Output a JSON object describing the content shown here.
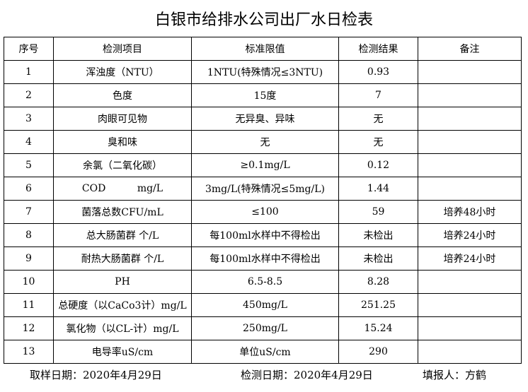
{
  "title": "白银市给排水公司出厂水日检表",
  "table": {
    "header": [
      "序号",
      "检测项目",
      "标准限值",
      "检测结果",
      "备注"
    ],
    "rows": [
      [
        "1",
        "浑浊度（NTU）",
        "1NTU(特殊情况≤3NTU)",
        "0.93",
        ""
      ],
      [
        "2",
        "色度",
        "15度",
        "7",
        ""
      ],
      [
        "3",
        "肉眼可见物",
        "无异臭、异味",
        "无",
        ""
      ],
      [
        "4",
        "臭和味",
        "无",
        "无",
        ""
      ],
      [
        "5",
        "余氯（二氧化碳）",
        "≥0.1mg/L",
        "0.12",
        ""
      ],
      [
        "6",
        "COD          mg/L",
        "3mg/L(特殊情况≤5mg/L)",
        "1.44",
        ""
      ],
      [
        "7",
        "菌落总数CFU/mL",
        "≤100",
        "59",
        "培养48小时"
      ],
      [
        "8",
        "总大肠菌群 个/L",
        "每100ml水样中不得检出",
        "未检出",
        "培养24小时"
      ],
      [
        "9",
        "耐热大肠菌群 个/L",
        "每100ml水样中不得检出",
        "未检出",
        "培养24小时"
      ],
      [
        "10",
        "PH",
        "6.5-8.5",
        "8.28",
        ""
      ],
      [
        "11",
        "总硬度（以CaCo3计）mg/L",
        "450mg/L",
        "251.25",
        ""
      ],
      [
        "12",
        "氯化物（以CL-计）mg/L",
        "250mg/L",
        "15.24",
        ""
      ],
      [
        "13",
        "电导率uS/cm",
        "单位uS/cm",
        "290",
        ""
      ]
    ]
  },
  "footer": {
    "sampling_date": "取样日期：2020年4月29日",
    "test_date": "检测日期：2020年4月29日",
    "reporter": "填报人：方鹤"
  }
}
